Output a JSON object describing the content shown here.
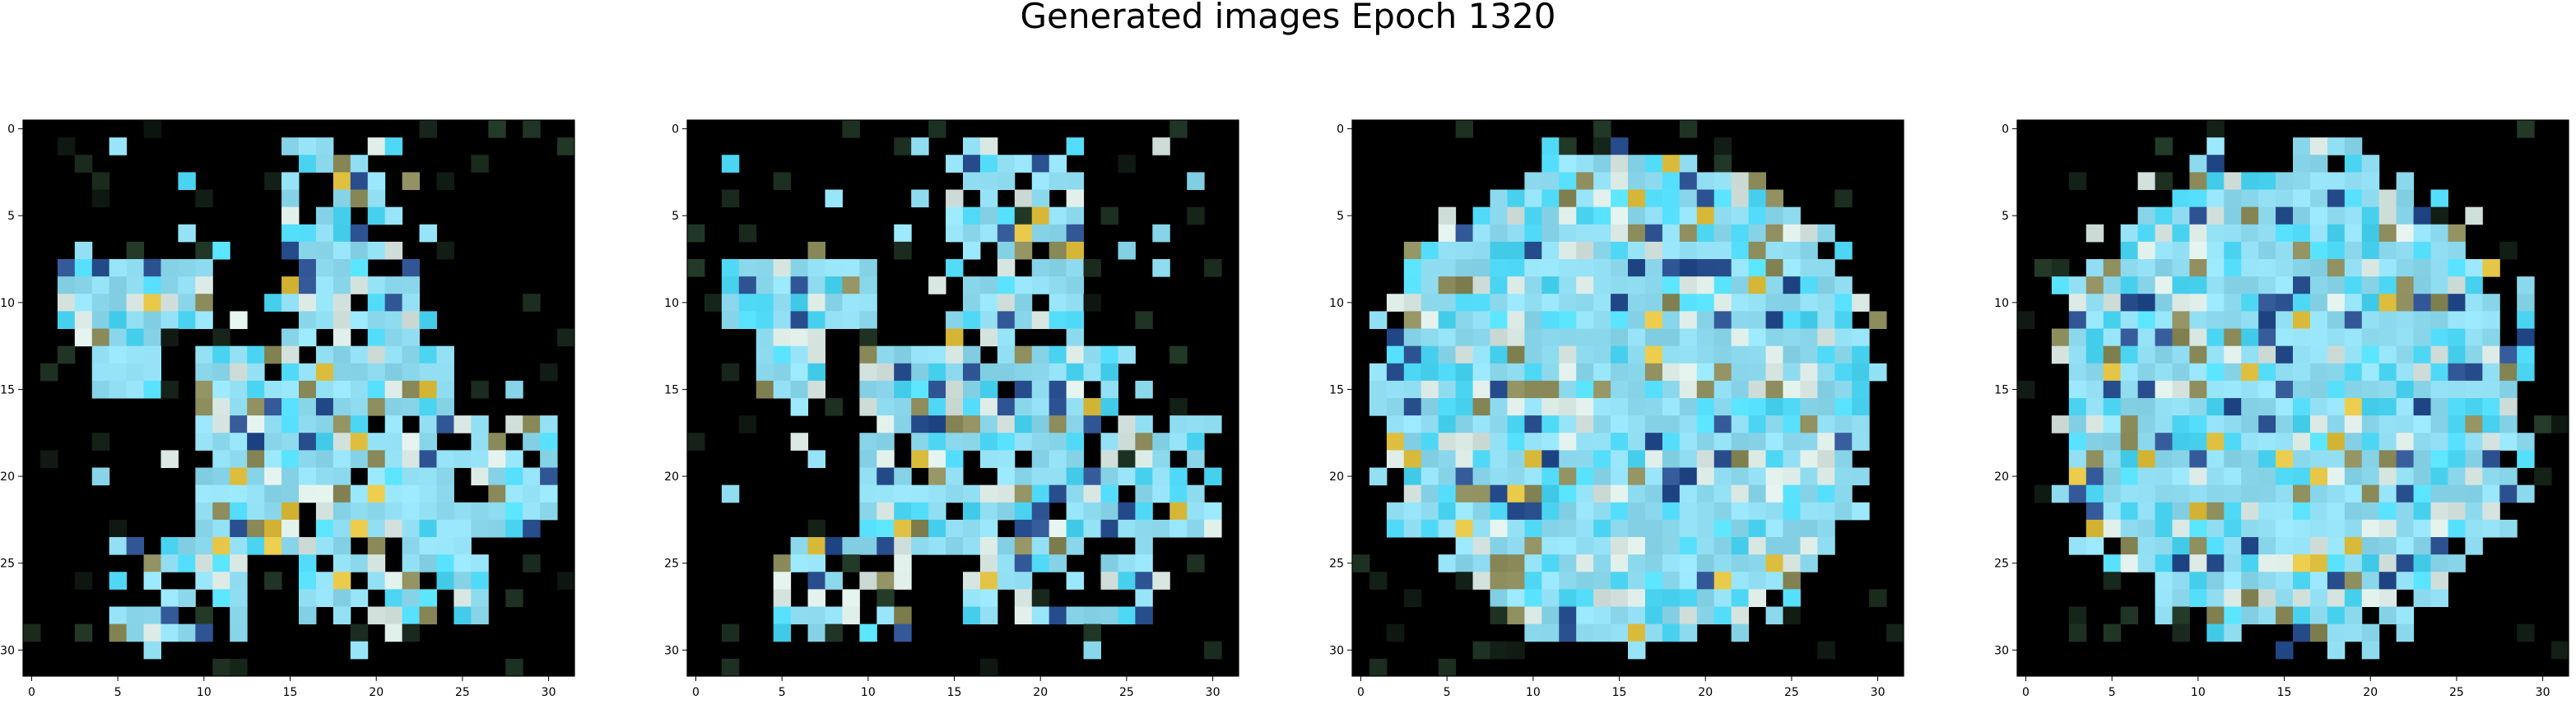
{
  "title": "Generated images Epoch 1320",
  "axis": {
    "xticks": [
      "0",
      "5",
      "10",
      "15",
      "20",
      "25",
      "30"
    ],
    "yticks": [
      "0",
      "5",
      "10",
      "15",
      "20",
      "25",
      "30"
    ]
  },
  "images": [
    {
      "name": "generated-image-1"
    },
    {
      "name": "generated-image-2"
    },
    {
      "name": "generated-image-3"
    },
    {
      "name": "generated-image-4"
    }
  ],
  "palette": {
    "background": "#000000",
    "main": "#8fdcf0",
    "highlight": "#4fd8f5",
    "pale": "#d8e6e2",
    "dark-blue": "#2a4f8f",
    "olive": "#8a8a5a",
    "yellow": "#e0c040"
  }
}
